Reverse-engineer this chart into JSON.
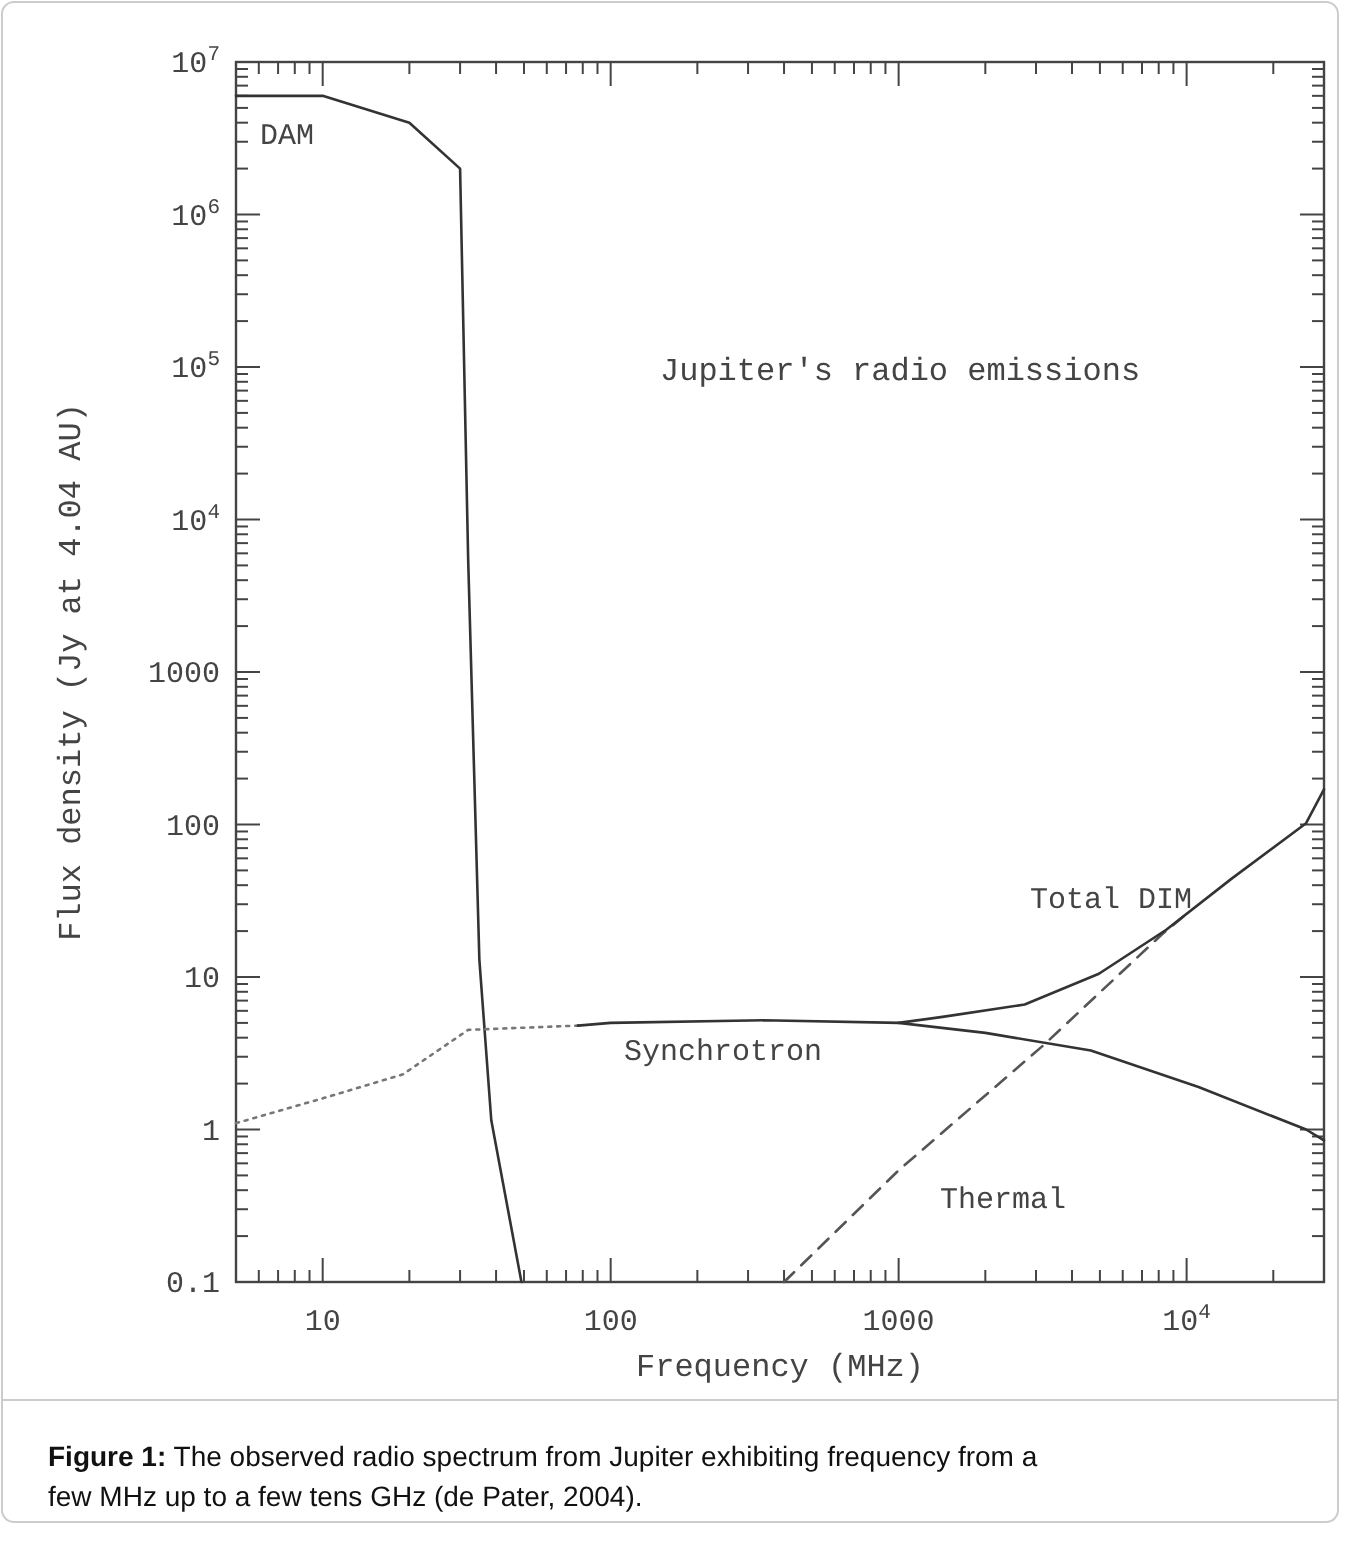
{
  "chart_data": {
    "type": "line",
    "xlabel": "Frequency (MHz)",
    "ylabel": "Flux density (Jy at 4.04 AU)",
    "log": "xy",
    "xlim": [
      5,
      30000
    ],
    "ylim": [
      0.1,
      10000000
    ],
    "xticks": [
      10,
      100,
      1000,
      {
        "value": 10000,
        "label": "10$^{4}$"
      }
    ],
    "yticks": [
      0.1,
      1,
      10,
      100,
      1000,
      {
        "value": 10000,
        "label": "10$^{4}$"
      },
      {
        "value": 100000,
        "label": "10$^{5}$"
      },
      {
        "value": 1000000,
        "label": "10$^{6}$"
      },
      {
        "value": 10000000,
        "label": "10$^{7}$"
      }
    ],
    "grid": false,
    "series": [
      {
        "name": "DAM",
        "color": "#333333",
        "line_style": "solid",
        "x": [
          5,
          10,
          20,
          30,
          32,
          35,
          38.5,
          49
        ],
        "values": [
          6000000,
          6000000,
          4000000,
          2000000,
          5500,
          13,
          1.15,
          0.1
        ]
      },
      {
        "color": "#777777",
        "line_style": "dotted",
        "x": [
          5,
          10,
          19,
          32,
          77
        ],
        "values": [
          1.1,
          1.6,
          2.3,
          4.5,
          4.8
        ]
      },
      {
        "name": "Synchrotron",
        "color": "#333333",
        "line_style": "solid",
        "x": [
          77,
          100,
          340,
          1000,
          2000,
          4650,
          11000,
          26000,
          30000
        ],
        "values": [
          4.8,
          5,
          5.2,
          5,
          4.3,
          3.3,
          1.9,
          1,
          0.85
        ]
      },
      {
        "name": "Thermal",
        "color": "#555555",
        "line_style": "dashed",
        "x": [
          400,
          1000,
          3200,
          8200,
          10000
        ],
        "values": [
          0.1,
          0.54,
          3.6,
          19,
          26
        ]
      },
      {
        "name": "Total DIM",
        "color": "#333333",
        "line_style": "solid",
        "x": [
          1000,
          1440,
          2740,
          4960,
          8500,
          14300,
          26000,
          30000
        ],
        "values": [
          5,
          5.5,
          6.6,
          10.5,
          20.4,
          44,
          102,
          170
        ]
      }
    ],
    "annotations": [
      "Jupiter's radio emissions",
      "**Figure 1:** The observed radio spectrum from Jupiter exhibiting frequency from a few MHz up to a few tens GHz (de Pater, 2004)."
    ]
  }
}
